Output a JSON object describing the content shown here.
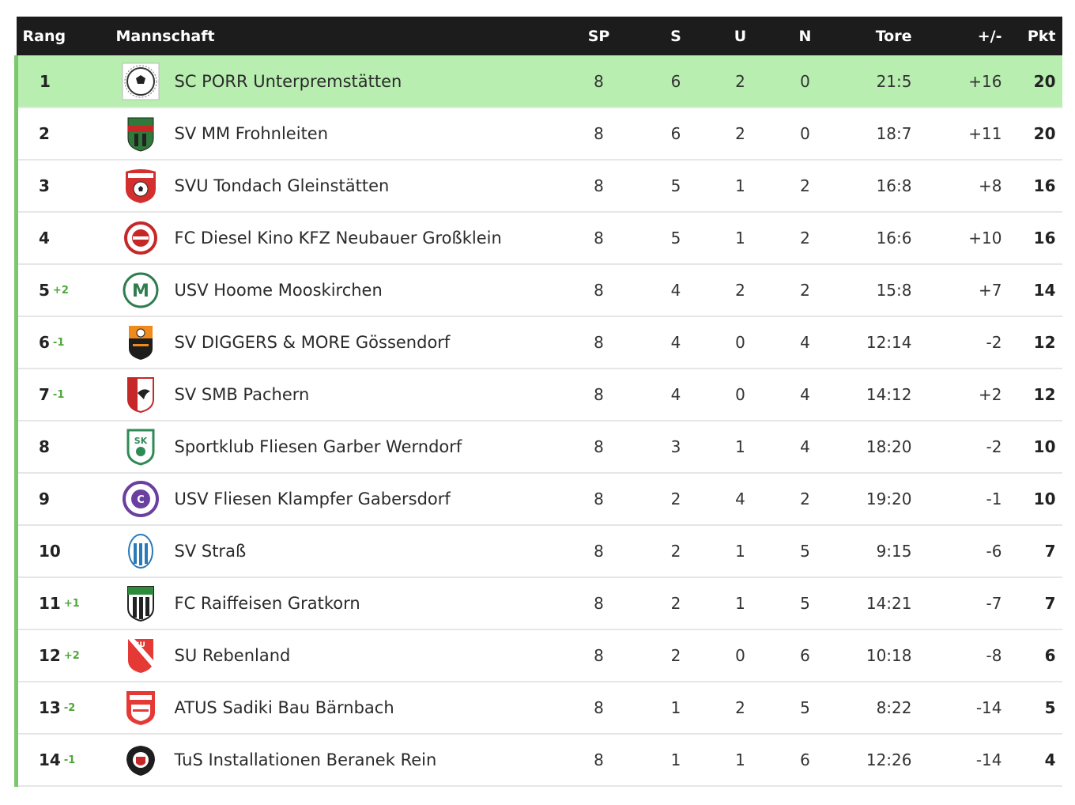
{
  "headers": {
    "rank": "Rang",
    "team": "Mannschaft",
    "played": "SP",
    "won": "S",
    "drawn": "U",
    "lost": "N",
    "goals": "Tore",
    "diff": "+/-",
    "points": "Pkt"
  },
  "colors": {
    "header_bg": "#1c1c1c",
    "leader_row_bg": "#b8eeb0",
    "rank_bar": "#7bc86c",
    "delta": "#4ea83a"
  },
  "rows": [
    {
      "rank": "1",
      "delta": "",
      "team": "SC PORR Unterpremstätten",
      "sp": "8",
      "s": "6",
      "u": "2",
      "n": "0",
      "tore": "21:5",
      "diff": "+16",
      "pkt": "20",
      "logo": "soccer-ball-crest-icon"
    },
    {
      "rank": "2",
      "delta": "",
      "team": "SV MM Frohnleiten",
      "sp": "8",
      "s": "6",
      "u": "2",
      "n": "0",
      "tore": "18:7",
      "diff": "+11",
      "pkt": "20",
      "logo": "green-red-shield-icon"
    },
    {
      "rank": "3",
      "delta": "",
      "team": "SVU Tondach Gleinstätten",
      "sp": "8",
      "s": "5",
      "u": "1",
      "n": "2",
      "tore": "16:8",
      "diff": "+8",
      "pkt": "16",
      "logo": "red-shield-ball-icon"
    },
    {
      "rank": "4",
      "delta": "",
      "team": "FC Diesel Kino KFZ Neubauer Großklein",
      "sp": "8",
      "s": "5",
      "u": "1",
      "n": "2",
      "tore": "16:6",
      "diff": "+10",
      "pkt": "16",
      "logo": "red-round-crest-icon"
    },
    {
      "rank": "5",
      "delta": "+2",
      "team": "USV Hoome Mooskirchen",
      "sp": "8",
      "s": "4",
      "u": "2",
      "n": "2",
      "tore": "15:8",
      "diff": "+7",
      "pkt": "14",
      "logo": "green-m-crest-icon"
    },
    {
      "rank": "6",
      "delta": "-1",
      "team": "SV DIGGERS & MORE Gössendorf",
      "sp": "8",
      "s": "4",
      "u": "0",
      "n": "4",
      "tore": "12:14",
      "diff": "-2",
      "pkt": "12",
      "logo": "black-orange-shield-icon"
    },
    {
      "rank": "7",
      "delta": "-1",
      "team": "SV SMB Pachern",
      "sp": "8",
      "s": "4",
      "u": "0",
      "n": "4",
      "tore": "14:12",
      "diff": "+2",
      "pkt": "12",
      "logo": "red-bird-shield-icon"
    },
    {
      "rank": "8",
      "delta": "",
      "team": "Sportklub Fliesen Garber Werndorf",
      "sp": "8",
      "s": "3",
      "u": "1",
      "n": "4",
      "tore": "18:20",
      "diff": "-2",
      "pkt": "10",
      "logo": "green-sk-shield-icon"
    },
    {
      "rank": "9",
      "delta": "",
      "team": "USV Fliesen Klampfer Gabersdorf",
      "sp": "8",
      "s": "2",
      "u": "4",
      "n": "2",
      "tore": "19:20",
      "diff": "-1",
      "pkt": "10",
      "logo": "purple-round-crest-icon"
    },
    {
      "rank": "10",
      "delta": "",
      "team": "SV Straß",
      "sp": "8",
      "s": "2",
      "u": "1",
      "n": "5",
      "tore": "9:15",
      "diff": "-6",
      "pkt": "7",
      "logo": "blue-striped-crest-icon"
    },
    {
      "rank": "11",
      "delta": "+1",
      "team": "FC Raiffeisen Gratkorn",
      "sp": "8",
      "s": "2",
      "u": "1",
      "n": "5",
      "tore": "14:21",
      "diff": "-7",
      "pkt": "7",
      "logo": "green-black-shield-icon"
    },
    {
      "rank": "12",
      "delta": "+2",
      "team": "SU Rebenland",
      "sp": "8",
      "s": "2",
      "u": "0",
      "n": "6",
      "tore": "10:18",
      "diff": "-8",
      "pkt": "6",
      "logo": "red-white-shield-icon"
    },
    {
      "rank": "13",
      "delta": "-2",
      "team": "ATUS Sadiki Bau Bärnbach",
      "sp": "8",
      "s": "1",
      "u": "2",
      "n": "5",
      "tore": "8:22",
      "diff": "-14",
      "pkt": "5",
      "logo": "red-atus-shield-icon"
    },
    {
      "rank": "14",
      "delta": "-1",
      "team": "TuS Installationen Beranek Rein",
      "sp": "8",
      "s": "1",
      "u": "1",
      "n": "6",
      "tore": "12:26",
      "diff": "-14",
      "pkt": "4",
      "logo": "black-red-laurel-crest-icon"
    }
  ]
}
